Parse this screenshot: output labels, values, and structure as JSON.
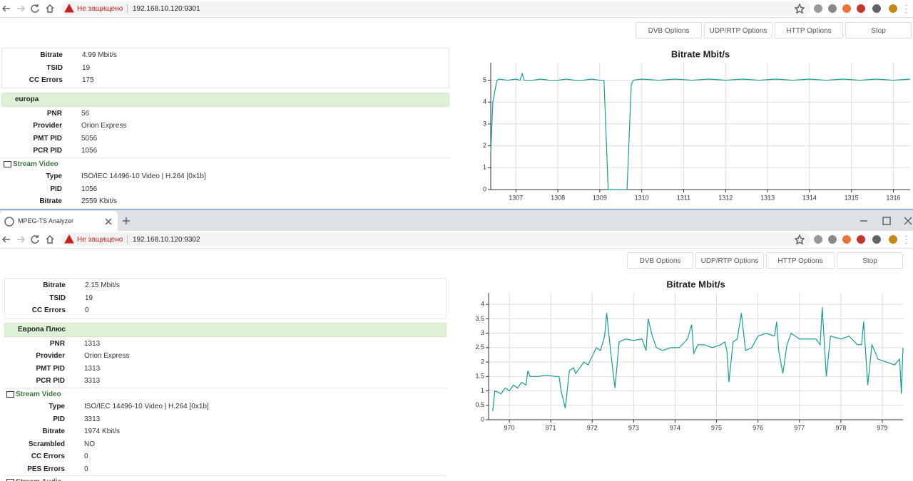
{
  "windows": [
    {
      "address": {
        "security": "Не защищено",
        "url": "192.168.10.120:9301"
      },
      "buttons": [
        "DVB Options",
        "UDP/RTP Options",
        "HTTP Options",
        "Stop"
      ],
      "summary": [
        [
          "Bitrate",
          "4.99 Mbit/s"
        ],
        [
          "TSID",
          "19"
        ],
        [
          "CC Errors",
          "175"
        ]
      ],
      "service": {
        "name": "europa",
        "rows": [
          [
            "PNR",
            "56"
          ],
          [
            "Provider",
            "Orion Express"
          ],
          [
            "PMT PID",
            "5056"
          ],
          [
            "PCR PID",
            "1056"
          ]
        ]
      },
      "streams": [
        {
          "title": "Stream Video",
          "rows": [
            [
              "Type",
              "ISO/IEC 14496-10 Video | H.264 [0x1b]"
            ],
            [
              "PID",
              "1056"
            ],
            [
              "Bitrate",
              "2559 Kbit/s"
            ]
          ]
        }
      ],
      "chart": {
        "type": "line",
        "title": "Bitrate Mbit/s",
        "color": "#1a9a94",
        "x": [
          1306.4,
          1306.45,
          1306.5,
          1306.55,
          1306.6,
          1306.8,
          1307.0,
          1307.1,
          1307.15,
          1307.2,
          1307.4,
          1307.6,
          1307.8,
          1308.0,
          1308.2,
          1308.4,
          1308.6,
          1308.8,
          1309.0,
          1309.1,
          1309.2,
          1309.3,
          1309.5,
          1309.65,
          1309.75,
          1309.8,
          1310.0,
          1310.4,
          1310.8,
          1311.2,
          1311.6,
          1312.0,
          1312.4,
          1312.8,
          1313.2,
          1313.6,
          1314.0,
          1314.4,
          1314.8,
          1315.2,
          1315.6,
          1316.0,
          1316.4
        ],
        "values": [
          1.7,
          4.0,
          4.5,
          5.0,
          5.05,
          5.0,
          5.05,
          5.0,
          5.3,
          5.0,
          5.0,
          5.05,
          5.0,
          5.0,
          5.05,
          5.0,
          5.0,
          5.05,
          5.0,
          5.0,
          0,
          0,
          0,
          0,
          4.8,
          5.0,
          5.05,
          5.0,
          5.05,
          5.0,
          5.05,
          5.0,
          5.05,
          5.0,
          5.05,
          5.0,
          5.05,
          5.0,
          5.05,
          5.0,
          5.05,
          5.0,
          5.05
        ],
        "xlim": [
          1306.4,
          1316.4
        ],
        "xticks": [
          1307,
          1308,
          1309,
          1310,
          1311,
          1312,
          1313,
          1314,
          1315,
          1316
        ],
        "ylim": [
          0,
          5.8
        ],
        "yticks": [
          0,
          1,
          2,
          3,
          4,
          5
        ],
        "grid": true
      }
    },
    {
      "tab": "MPEG-TS Analyzer",
      "address": {
        "security": "Не защищено",
        "url": "192.168.10.120:9302"
      },
      "buttons": [
        "DVB Options",
        "UDP/RTP Options",
        "HTTP Options",
        "Stop"
      ],
      "summary": [
        [
          "Bitrate",
          "2.15 Mbit/s"
        ],
        [
          "TSID",
          "19"
        ],
        [
          "CC Errors",
          "0"
        ]
      ],
      "service": {
        "name": "Европа Плюс",
        "rows": [
          [
            "PNR",
            "1313"
          ],
          [
            "Provider",
            "Orion Express"
          ],
          [
            "PMT PID",
            "1313"
          ],
          [
            "PCR PID",
            "3313"
          ]
        ]
      },
      "streams": [
        {
          "title": "Stream Video",
          "rows": [
            [
              "Type",
              "ISO/IEC 14496-10 Video | H.264 [0x1b]"
            ],
            [
              "PID",
              "3313"
            ],
            [
              "Bitrate",
              "1974 Kbit/s"
            ],
            [
              "Scrambled",
              "NO"
            ],
            [
              "CC Errors",
              "0"
            ],
            [
              "PES Errors",
              "0"
            ]
          ]
        },
        {
          "title": "Stream Audio",
          "rows": []
        }
      ],
      "chart": {
        "type": "line",
        "title": "Bitrate Mbit/s",
        "color": "#1a9a94",
        "x": [
          969.6,
          969.65,
          969.8,
          969.9,
          970.0,
          970.1,
          970.2,
          970.3,
          970.4,
          970.45,
          970.5,
          970.7,
          970.9,
          971.1,
          971.2,
          971.25,
          971.35,
          971.45,
          971.55,
          971.6,
          971.8,
          971.9,
          972.0,
          972.1,
          972.2,
          972.3,
          972.35,
          972.45,
          972.55,
          972.65,
          972.8,
          973.0,
          973.2,
          973.3,
          973.35,
          973.45,
          973.55,
          973.7,
          973.9,
          974.1,
          974.3,
          974.4,
          974.45,
          974.55,
          974.7,
          974.9,
          975.1,
          975.2,
          975.25,
          975.3,
          975.4,
          975.5,
          975.6,
          975.7,
          975.85,
          976.0,
          976.2,
          976.4,
          976.45,
          976.5,
          976.6,
          976.7,
          976.8,
          977.0,
          977.2,
          977.4,
          977.5,
          977.55,
          977.65,
          977.75,
          978.0,
          978.2,
          978.4,
          978.5,
          978.55,
          978.65,
          978.75,
          978.9,
          979.1,
          979.3,
          979.35,
          979.42,
          979.46,
          979.5
        ],
        "values": [
          0.3,
          1.0,
          0.9,
          1.1,
          1.0,
          1.2,
          1.1,
          1.3,
          1.2,
          1.7,
          1.5,
          1.5,
          1.55,
          1.5,
          1.5,
          1.0,
          0.4,
          1.7,
          1.8,
          1.6,
          2.0,
          1.9,
          2.2,
          2.5,
          2.4,
          2.9,
          3.7,
          2.3,
          1.1,
          2.7,
          2.8,
          2.75,
          2.8,
          2.4,
          3.5,
          2.9,
          2.5,
          2.4,
          2.5,
          2.5,
          2.8,
          3.3,
          2.3,
          2.6,
          2.6,
          2.5,
          2.6,
          2.7,
          2.4,
          1.3,
          2.7,
          2.8,
          3.7,
          2.4,
          2.5,
          2.9,
          3.0,
          2.9,
          3.4,
          2.4,
          1.6,
          2.6,
          3.0,
          2.8,
          2.8,
          2.8,
          2.6,
          3.9,
          1.5,
          2.9,
          2.8,
          2.9,
          2.6,
          2.6,
          3.4,
          1.2,
          2.6,
          2.1,
          2.0,
          1.9,
          2.0,
          2.1,
          0.9,
          2.5
        ],
        "xlim": [
          969.5,
          979.5
        ],
        "xticks": [
          970,
          971,
          972,
          973,
          974,
          975,
          976,
          977,
          978,
          979
        ],
        "ylim": [
          0,
          4.4
        ],
        "yticks": [
          0,
          0.5,
          1,
          1.5,
          2,
          2.5,
          3,
          3.5,
          4
        ],
        "grid": true
      }
    }
  ]
}
